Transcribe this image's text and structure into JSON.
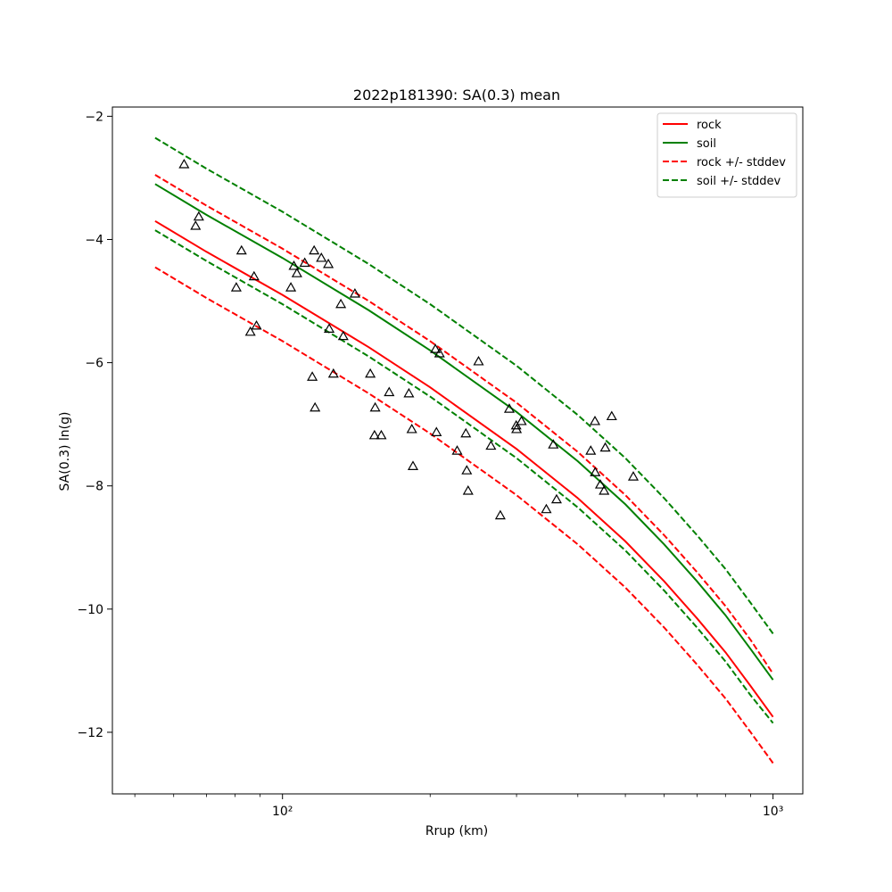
{
  "chart_data": {
    "type": "line",
    "title": "2022p181390: SA(0.3) mean",
    "xlabel": "Rrup (km)",
    "ylabel": "SA(0.3) ln(g)",
    "x_scale": "log",
    "xlim": [
      45,
      1150
    ],
    "ylim": [
      -13,
      -1.85
    ],
    "x_ticks": [
      100,
      1000
    ],
    "x_tick_labels": [
      "10²",
      "10³"
    ],
    "y_ticks": [
      -12,
      -10,
      -8,
      -6,
      -4,
      -2
    ],
    "y_tick_labels": [
      "−12",
      "−10",
      "−8",
      "−6",
      "−4",
      "−2"
    ],
    "grid": false,
    "legend_position": "top-right",
    "series": [
      {
        "name": "rock",
        "color": "#ff0000",
        "style": "solid",
        "x": [
          55,
          70,
          100,
          150,
          200,
          300,
          400,
          500,
          600,
          700,
          800,
          900,
          1000
        ],
        "values": [
          -3.7,
          -4.2,
          -4.9,
          -5.75,
          -6.4,
          -7.4,
          -8.2,
          -8.9,
          -9.55,
          -10.15,
          -10.7,
          -11.25,
          -11.75
        ]
      },
      {
        "name": "soil",
        "color": "#008000",
        "style": "solid",
        "x": [
          55,
          70,
          100,
          150,
          200,
          300,
          400,
          500,
          600,
          700,
          800,
          900,
          1000
        ],
        "values": [
          -3.1,
          -3.6,
          -4.3,
          -5.15,
          -5.8,
          -6.8,
          -7.6,
          -8.3,
          -8.95,
          -9.55,
          -10.1,
          -10.65,
          -11.15
        ]
      },
      {
        "name": "rock +/- stddev",
        "color": "#ff0000",
        "style": "dashed",
        "x": [
          55,
          70,
          100,
          150,
          200,
          300,
          400,
          500,
          600,
          700,
          800,
          900,
          1000
        ],
        "values": [
          -2.95,
          -3.45,
          -4.15,
          -5.0,
          -5.65,
          -6.65,
          -7.45,
          -8.15,
          -8.8,
          -9.4,
          -9.95,
          -10.5,
          -11.05
        ]
      },
      {
        "name": "",
        "color": "#ff0000",
        "style": "dashed",
        "x": [
          55,
          70,
          100,
          150,
          200,
          300,
          400,
          500,
          600,
          700,
          800,
          900,
          1000
        ],
        "values": [
          -4.45,
          -4.95,
          -5.65,
          -6.5,
          -7.15,
          -8.15,
          -8.95,
          -9.65,
          -10.3,
          -10.9,
          -11.45,
          -12.0,
          -12.5
        ]
      },
      {
        "name": "soil +/- stddev",
        "color": "#008000",
        "style": "dashed",
        "x": [
          55,
          70,
          100,
          150,
          200,
          300,
          400,
          500,
          600,
          700,
          800,
          900,
          1000
        ],
        "values": [
          -2.35,
          -2.85,
          -3.55,
          -4.4,
          -5.05,
          -6.05,
          -6.85,
          -7.55,
          -8.2,
          -8.8,
          -9.35,
          -9.9,
          -10.4
        ]
      },
      {
        "name": "",
        "color": "#008000",
        "style": "dashed",
        "x": [
          55,
          70,
          100,
          150,
          200,
          300,
          400,
          500,
          600,
          700,
          800,
          900,
          1000
        ],
        "values": [
          -3.85,
          -4.35,
          -5.05,
          -5.9,
          -6.55,
          -7.55,
          -8.35,
          -9.05,
          -9.7,
          -10.3,
          -10.85,
          -11.4,
          -11.85
        ]
      }
    ],
    "observations": {
      "marker": "triangle-open",
      "color": "#000000",
      "points": [
        [
          63,
          -2.78
        ],
        [
          66.5,
          -3.78
        ],
        [
          67.5,
          -3.63
        ],
        [
          80.5,
          -4.78
        ],
        [
          82.5,
          -4.18
        ],
        [
          86,
          -5.5
        ],
        [
          87.5,
          -4.6
        ],
        [
          88.5,
          -5.4
        ],
        [
          104,
          -4.78
        ],
        [
          105.5,
          -4.43
        ],
        [
          107,
          -4.55
        ],
        [
          111,
          -4.38
        ],
        [
          115,
          -6.23
        ],
        [
          116,
          -4.18
        ],
        [
          116.5,
          -6.73
        ],
        [
          120,
          -4.3
        ],
        [
          124,
          -4.4
        ],
        [
          124.5,
          -5.45
        ],
        [
          127,
          -6.18
        ],
        [
          131.5,
          -5.05
        ],
        [
          133,
          -5.57
        ],
        [
          140.5,
          -4.88
        ],
        [
          151,
          -6.18
        ],
        [
          154,
          -7.18
        ],
        [
          154.5,
          -6.73
        ],
        [
          159,
          -7.18
        ],
        [
          165,
          -6.48
        ],
        [
          181,
          -6.5
        ],
        [
          183.5,
          -7.08
        ],
        [
          184.5,
          -7.68
        ],
        [
          205,
          -5.78
        ],
        [
          206,
          -7.13
        ],
        [
          209,
          -5.85
        ],
        [
          227,
          -7.43
        ],
        [
          236.5,
          -7.15
        ],
        [
          237.5,
          -7.75
        ],
        [
          239,
          -8.08
        ],
        [
          251,
          -5.98
        ],
        [
          266,
          -7.35
        ],
        [
          278,
          -8.48
        ],
        [
          290,
          -6.75
        ],
        [
          299.5,
          -7.02
        ],
        [
          300,
          -7.08
        ],
        [
          307,
          -6.95
        ],
        [
          345,
          -8.38
        ],
        [
          356.5,
          -7.33
        ],
        [
          362,
          -8.22
        ],
        [
          425,
          -7.43
        ],
        [
          433.5,
          -6.95
        ],
        [
          434,
          -7.78
        ],
        [
          444.5,
          -7.98
        ],
        [
          452.5,
          -8.08
        ],
        [
          455,
          -7.38
        ],
        [
          469,
          -6.87
        ],
        [
          519,
          -7.85
        ]
      ]
    }
  }
}
